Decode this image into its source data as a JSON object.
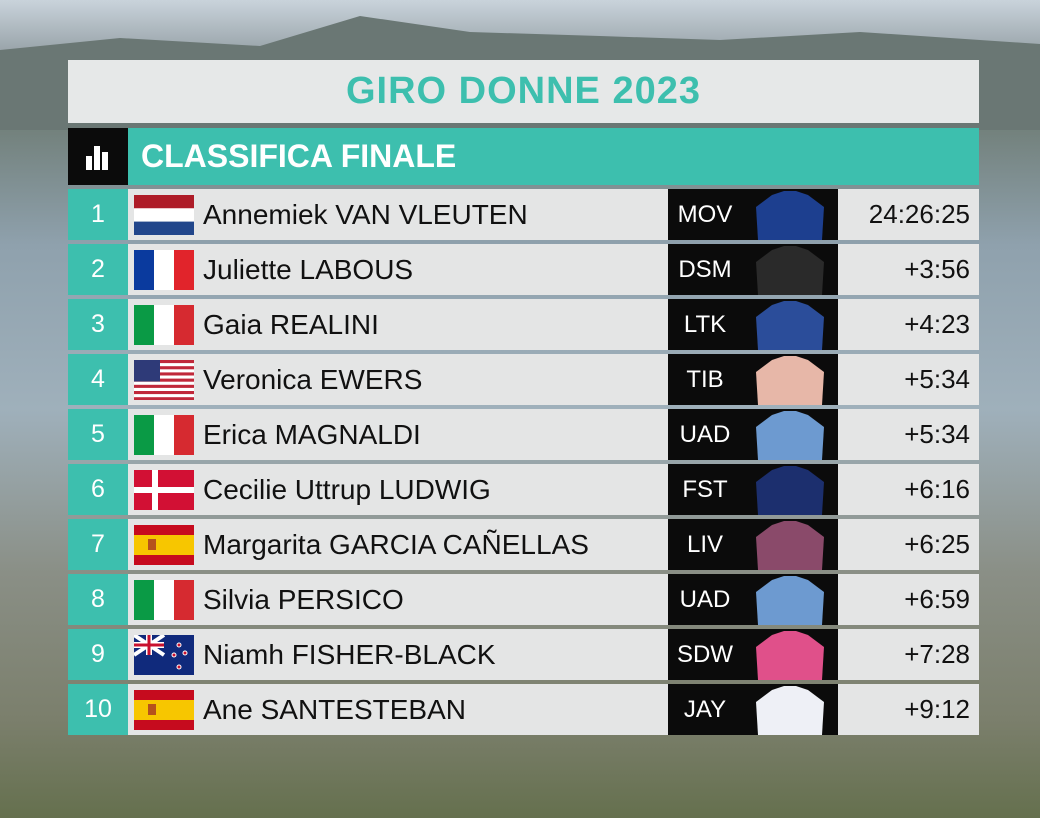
{
  "header": {
    "title": "GIRO DONNE 2023",
    "subtitle": "CLASSIFICA FINALE"
  },
  "standings": [
    {
      "rank": 1,
      "name": "Annemiek VAN VLEUTEN",
      "team": "MOV",
      "time": "24:26:25"
    },
    {
      "rank": 2,
      "name": "Juliette LABOUS",
      "team": "DSM",
      "time": "+3:56"
    },
    {
      "rank": 3,
      "name": "Gaia REALINI",
      "team": "LTK",
      "time": "+4:23"
    },
    {
      "rank": 4,
      "name": "Veronica EWERS",
      "team": "TIB",
      "time": "+5:34"
    },
    {
      "rank": 5,
      "name": "Erica MAGNALDI",
      "team": "UAD",
      "time": "+5:34"
    },
    {
      "rank": 6,
      "name": "Cecilie Uttrup LUDWIG",
      "team": "FST",
      "time": "+6:16"
    },
    {
      "rank": 7,
      "name": "Margarita GARCIA CAÑELLAS",
      "team": "LIV",
      "time": "+6:25"
    },
    {
      "rank": 8,
      "name": "Silvia PERSICO",
      "team": "UAD",
      "time": "+6:59"
    },
    {
      "rank": 9,
      "name": "Niamh FISHER-BLACK",
      "team": "SDW",
      "time": "+7:28"
    },
    {
      "rank": 10,
      "name": "Ane SANTESTEBAN",
      "team": "JAY",
      "time": "+9:12"
    }
  ]
}
